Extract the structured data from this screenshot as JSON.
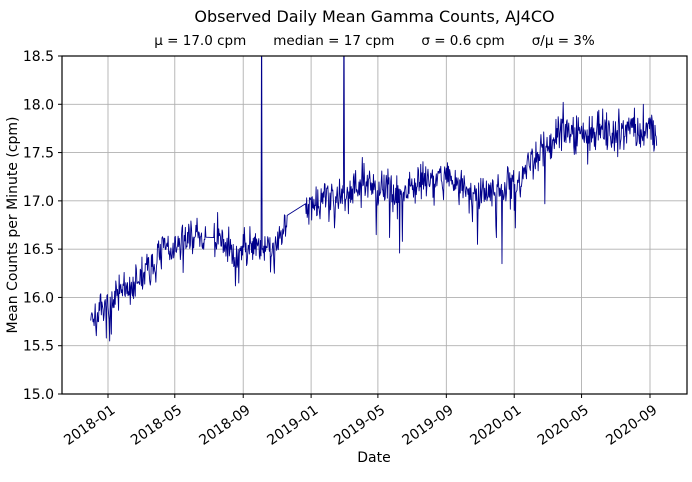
{
  "chart_data": {
    "type": "line",
    "title": "Observed Daily Mean Gamma Counts, AJ4CO",
    "stats": [
      "μ = 17.0 cpm",
      "median = 17 cpm",
      "σ = 0.6 cpm",
      "σ/μ = 3%"
    ],
    "xlabel": "Date",
    "ylabel": "Mean Counts per Minute (cpm)",
    "series_name": "observed daily mean gamma counts",
    "x_ticks": [
      "2018-01",
      "2018-05",
      "2018-09",
      "2019-01",
      "2019-05",
      "2019-09",
      "2020-01",
      "2020-05",
      "2020-09"
    ],
    "y_ticks": [
      15.0,
      15.5,
      16.0,
      16.5,
      17.0,
      17.5,
      18.0,
      18.5
    ],
    "ylim": [
      15.0,
      18.5
    ],
    "x_range": [
      "2017-12-01",
      "2020-09-13"
    ],
    "grid": true,
    "legend": false,
    "colors": {
      "line": "#00008b",
      "grid": "#b0b0b0",
      "spine": "#000000",
      "background": "#ffffff",
      "text": "#000000"
    },
    "noise_sd": 0.095,
    "trend": [
      [
        "2017-12-01",
        15.85
      ],
      [
        "2017-12-10",
        15.78
      ],
      [
        "2017-12-20",
        15.85
      ],
      [
        "2018-01-01",
        15.88
      ],
      [
        "2018-01-15",
        16.0
      ],
      [
        "2018-02-01",
        16.1
      ],
      [
        "2018-02-15",
        16.12
      ],
      [
        "2018-03-01",
        16.22
      ],
      [
        "2018-03-20",
        16.33
      ],
      [
        "2018-04-05",
        16.45
      ],
      [
        "2018-04-20",
        16.52
      ],
      [
        "2018-05-05",
        16.5
      ],
      [
        "2018-05-20",
        16.58
      ],
      [
        "2018-06-05",
        16.66
      ],
      [
        "2018-06-20",
        16.62
      ],
      [
        "2018-07-05",
        16.63
      ],
      [
        "2018-07-20",
        16.6
      ],
      [
        "2018-08-05",
        16.48
      ],
      [
        "2018-08-20",
        16.42
      ],
      [
        "2018-09-05",
        16.55
      ],
      [
        "2018-09-20",
        16.6
      ],
      [
        "2018-10-05",
        16.52
      ],
      [
        "2018-10-20",
        16.5
      ],
      [
        "2018-11-05",
        16.6
      ],
      [
        "2018-11-19",
        16.85
      ],
      [
        "2018-12-22",
        16.97
      ],
      [
        "2019-01-05",
        17.0
      ],
      [
        "2019-01-20",
        17.02
      ],
      [
        "2019-02-05",
        17.05
      ],
      [
        "2019-02-20",
        17.08
      ],
      [
        "2019-03-05",
        17.08
      ],
      [
        "2019-03-20",
        17.15
      ],
      [
        "2019-04-05",
        17.18
      ],
      [
        "2019-04-20",
        17.12
      ],
      [
        "2019-05-05",
        17.1
      ],
      [
        "2019-05-20",
        17.12
      ],
      [
        "2019-06-05",
        17.08
      ],
      [
        "2019-06-20",
        17.12
      ],
      [
        "2019-07-05",
        17.2
      ],
      [
        "2019-07-20",
        17.25
      ],
      [
        "2019-08-05",
        17.22
      ],
      [
        "2019-08-20",
        17.25
      ],
      [
        "2019-09-05",
        17.25
      ],
      [
        "2019-09-20",
        17.18
      ],
      [
        "2019-10-05",
        17.08
      ],
      [
        "2019-10-20",
        17.02
      ],
      [
        "2019-11-05",
        17.1
      ],
      [
        "2019-11-20",
        17.12
      ],
      [
        "2019-12-05",
        17.1
      ],
      [
        "2019-12-20",
        17.15
      ],
      [
        "2020-01-05",
        17.2
      ],
      [
        "2020-01-20",
        17.32
      ],
      [
        "2020-02-05",
        17.45
      ],
      [
        "2020-02-20",
        17.55
      ],
      [
        "2020-03-05",
        17.6
      ],
      [
        "2020-03-20",
        17.68
      ],
      [
        "2020-04-05",
        17.7
      ],
      [
        "2020-04-20",
        17.7
      ],
      [
        "2020-05-05",
        17.72
      ],
      [
        "2020-05-20",
        17.7
      ],
      [
        "2020-06-05",
        17.75
      ],
      [
        "2020-06-20",
        17.72
      ],
      [
        "2020-07-05",
        17.7
      ],
      [
        "2020-07-20",
        17.73
      ],
      [
        "2020-08-05",
        17.75
      ],
      [
        "2020-08-20",
        17.76
      ],
      [
        "2020-09-01",
        17.75
      ],
      [
        "2020-09-13",
        17.65
      ]
    ],
    "gaps": [
      {
        "from": "2018-06-26",
        "to": "2018-07-10"
      },
      {
        "from": "2018-11-19",
        "to": "2018-12-22"
      }
    ],
    "spikes": [
      {
        "date": "2018-10-04",
        "value": 19.3,
        "note": "off-scale above 18.5"
      },
      {
        "date": "2019-03-01",
        "value": 19.3,
        "note": "off-scale above 18.5"
      }
    ],
    "outliers": [
      {
        "date": "2017-12-29",
        "value": 15.58
      },
      {
        "date": "2018-01-07",
        "value": 15.62
      },
      {
        "date": "2018-08-18",
        "value": 16.12
      },
      {
        "date": "2018-08-24",
        "value": 16.15
      },
      {
        "date": "2018-07-17",
        "value": 16.88
      },
      {
        "date": "2018-10-27",
        "value": 16.25
      },
      {
        "date": "2019-02-12",
        "value": 16.72
      },
      {
        "date": "2019-04-03",
        "value": 17.45
      },
      {
        "date": "2019-04-28",
        "value": 16.65
      },
      {
        "date": "2019-05-22",
        "value": 16.62
      },
      {
        "date": "2019-06-09",
        "value": 16.46
      },
      {
        "date": "2019-06-14",
        "value": 16.58
      },
      {
        "date": "2019-10-27",
        "value": 16.55
      },
      {
        "date": "2019-11-30",
        "value": 16.62
      },
      {
        "date": "2019-12-10",
        "value": 16.35
      },
      {
        "date": "2020-01-03",
        "value": 16.72
      },
      {
        "date": "2020-02-25",
        "value": 16.97
      },
      {
        "date": "2020-03-29",
        "value": 18.02
      },
      {
        "date": "2020-08-20",
        "value": 18.0
      }
    ]
  }
}
